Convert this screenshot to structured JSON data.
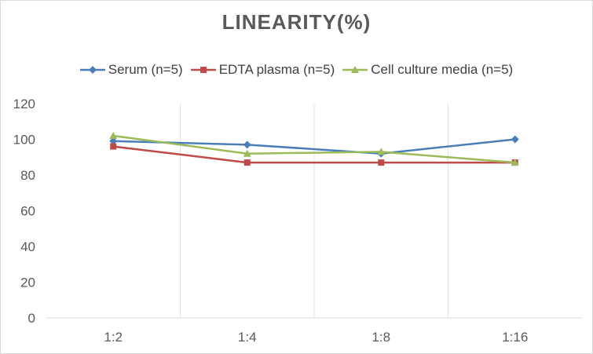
{
  "chart_data": {
    "type": "line",
    "title": "LINEARITY(%)",
    "xlabel": "",
    "ylabel": "",
    "categories": [
      "1:2",
      "1:4",
      "1:8",
      "1:16"
    ],
    "ylim": [
      0,
      120
    ],
    "yticks": [
      0,
      20,
      40,
      60,
      80,
      100,
      120
    ],
    "grid": "vertical",
    "legend_position": "top",
    "series": [
      {
        "name": "Serum (n=5)",
        "values": [
          99,
          97,
          92,
          100
        ],
        "color": "#4a7ebb",
        "marker": "diamond"
      },
      {
        "name": "EDTA plasma (n=5)",
        "values": [
          96,
          87,
          87,
          87
        ],
        "color": "#be4b48",
        "marker": "square"
      },
      {
        "name": "Cell culture media (n=5)",
        "values": [
          102,
          92,
          93,
          87
        ],
        "color": "#9bbb59",
        "marker": "triangle"
      }
    ]
  }
}
